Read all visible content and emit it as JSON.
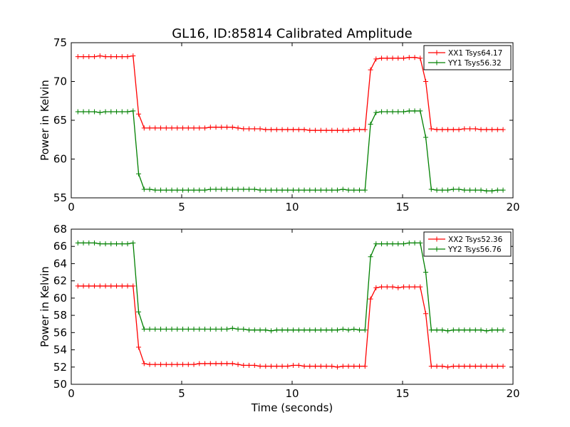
{
  "figure": {
    "title": "GL16, ID:85814 Calibrated Amplitude",
    "xlabel": "Time (seconds)"
  },
  "chart_data": [
    {
      "type": "line",
      "ylabel": "Power in Kelvin",
      "xlim": [
        0,
        20
      ],
      "ylim": [
        55,
        75
      ],
      "xticks": [
        0,
        5,
        10,
        15,
        20
      ],
      "yticks": [
        55,
        60,
        65,
        70,
        75
      ],
      "grid": false,
      "legend_position": "top-right",
      "x": [
        0.3,
        0.55,
        0.8,
        1.05,
        1.3,
        1.55,
        1.8,
        2.05,
        2.3,
        2.55,
        2.8,
        3.05,
        3.3,
        3.55,
        3.8,
        4.05,
        4.3,
        4.55,
        4.8,
        5.05,
        5.3,
        5.55,
        5.8,
        6.05,
        6.3,
        6.55,
        6.8,
        7.05,
        7.3,
        7.55,
        7.8,
        8.05,
        8.3,
        8.55,
        8.8,
        9.05,
        9.3,
        9.55,
        9.8,
        10.05,
        10.3,
        10.55,
        10.8,
        11.05,
        11.3,
        11.55,
        11.8,
        12.05,
        12.3,
        12.55,
        12.8,
        13.05,
        13.3,
        13.55,
        13.8,
        14.05,
        14.3,
        14.55,
        14.8,
        15.05,
        15.3,
        15.55,
        15.8,
        16.05,
        16.3,
        16.55,
        16.8,
        17.05,
        17.3,
        17.55,
        17.8,
        18.05,
        18.3,
        18.55,
        18.8,
        19.05,
        19.3,
        19.55
      ],
      "series": [
        {
          "name": "XX1 Tsys64.17",
          "color": "#ff0000",
          "values": [
            73.2,
            73.2,
            73.2,
            73.2,
            73.3,
            73.2,
            73.2,
            73.2,
            73.2,
            73.2,
            73.3,
            65.8,
            64.0,
            64.0,
            64.0,
            64.0,
            64.0,
            64.0,
            64.0,
            64.0,
            64.0,
            64.0,
            64.0,
            64.0,
            64.1,
            64.1,
            64.1,
            64.1,
            64.1,
            64.0,
            63.9,
            63.9,
            63.9,
            63.9,
            63.8,
            63.8,
            63.8,
            63.8,
            63.8,
            63.8,
            63.8,
            63.8,
            63.7,
            63.7,
            63.7,
            63.7,
            63.7,
            63.7,
            63.7,
            63.7,
            63.8,
            63.8,
            63.8,
            71.5,
            72.9,
            73.0,
            73.0,
            73.0,
            73.0,
            73.0,
            73.1,
            73.1,
            73.0,
            70.0,
            63.9,
            63.8,
            63.8,
            63.8,
            63.8,
            63.8,
            63.9,
            63.9,
            63.9,
            63.8,
            63.8,
            63.8,
            63.8,
            63.8
          ]
        },
        {
          "name": "YY1 Tsys56.32",
          "color": "#008000",
          "values": [
            66.1,
            66.1,
            66.1,
            66.1,
            66.0,
            66.1,
            66.1,
            66.1,
            66.1,
            66.1,
            66.2,
            58.1,
            56.1,
            56.1,
            56.0,
            56.0,
            56.0,
            56.0,
            56.0,
            56.0,
            56.0,
            56.0,
            56.0,
            56.0,
            56.1,
            56.1,
            56.1,
            56.1,
            56.1,
            56.1,
            56.1,
            56.1,
            56.1,
            56.0,
            56.0,
            56.0,
            56.0,
            56.0,
            56.0,
            56.0,
            56.0,
            56.0,
            56.0,
            56.0,
            56.0,
            56.0,
            56.0,
            56.0,
            56.1,
            56.0,
            56.0,
            56.0,
            56.0,
            64.5,
            66.0,
            66.1,
            66.1,
            66.1,
            66.1,
            66.1,
            66.2,
            66.2,
            66.2,
            62.8,
            56.1,
            56.0,
            56.0,
            56.0,
            56.1,
            56.1,
            56.0,
            56.0,
            56.0,
            56.0,
            55.9,
            55.9,
            56.0,
            56.0
          ]
        }
      ]
    },
    {
      "type": "line",
      "ylabel": "Power in Kelvin",
      "xlabel": "Time (seconds)",
      "xlim": [
        0,
        20
      ],
      "ylim": [
        50,
        68
      ],
      "xticks": [
        0,
        5,
        10,
        15,
        20
      ],
      "yticks": [
        50,
        52,
        54,
        56,
        58,
        60,
        62,
        64,
        66,
        68
      ],
      "grid": false,
      "legend_position": "top-right",
      "x": [
        0.3,
        0.55,
        0.8,
        1.05,
        1.3,
        1.55,
        1.8,
        2.05,
        2.3,
        2.55,
        2.8,
        3.05,
        3.3,
        3.55,
        3.8,
        4.05,
        4.3,
        4.55,
        4.8,
        5.05,
        5.3,
        5.55,
        5.8,
        6.05,
        6.3,
        6.55,
        6.8,
        7.05,
        7.3,
        7.55,
        7.8,
        8.05,
        8.3,
        8.55,
        8.8,
        9.05,
        9.3,
        9.55,
        9.8,
        10.05,
        10.3,
        10.55,
        10.8,
        11.05,
        11.3,
        11.55,
        11.8,
        12.05,
        12.3,
        12.55,
        12.8,
        13.05,
        13.3,
        13.55,
        13.8,
        14.05,
        14.3,
        14.55,
        14.8,
        15.05,
        15.3,
        15.55,
        15.8,
        16.05,
        16.3,
        16.55,
        16.8,
        17.05,
        17.3,
        17.55,
        17.8,
        18.05,
        18.3,
        18.55,
        18.8,
        19.05,
        19.3,
        19.55
      ],
      "series": [
        {
          "name": "XX2 Tsys52.36",
          "color": "#ff0000",
          "values": [
            61.4,
            61.4,
            61.4,
            61.4,
            61.4,
            61.4,
            61.4,
            61.4,
            61.4,
            61.4,
            61.4,
            54.3,
            52.4,
            52.3,
            52.3,
            52.3,
            52.3,
            52.3,
            52.3,
            52.3,
            52.3,
            52.3,
            52.4,
            52.4,
            52.4,
            52.4,
            52.4,
            52.4,
            52.4,
            52.3,
            52.2,
            52.2,
            52.2,
            52.1,
            52.1,
            52.1,
            52.1,
            52.1,
            52.1,
            52.2,
            52.2,
            52.1,
            52.1,
            52.1,
            52.1,
            52.1,
            52.1,
            52.0,
            52.1,
            52.1,
            52.1,
            52.1,
            52.1,
            59.9,
            61.2,
            61.3,
            61.3,
            61.3,
            61.2,
            61.3,
            61.3,
            61.3,
            61.3,
            58.2,
            52.1,
            52.1,
            52.1,
            52.0,
            52.1,
            52.1,
            52.1,
            52.1,
            52.1,
            52.1,
            52.1,
            52.1,
            52.1,
            52.1
          ]
        },
        {
          "name": "YY2 Tsys56.76",
          "color": "#008000",
          "values": [
            66.4,
            66.4,
            66.4,
            66.4,
            66.3,
            66.3,
            66.3,
            66.3,
            66.3,
            66.3,
            66.4,
            58.4,
            56.4,
            56.4,
            56.4,
            56.4,
            56.4,
            56.4,
            56.4,
            56.4,
            56.4,
            56.4,
            56.4,
            56.4,
            56.4,
            56.4,
            56.4,
            56.4,
            56.5,
            56.4,
            56.4,
            56.3,
            56.3,
            56.3,
            56.3,
            56.2,
            56.3,
            56.3,
            56.3,
            56.3,
            56.3,
            56.3,
            56.3,
            56.3,
            56.3,
            56.3,
            56.3,
            56.3,
            56.4,
            56.3,
            56.4,
            56.3,
            56.3,
            64.8,
            66.3,
            66.3,
            66.3,
            66.3,
            66.3,
            66.3,
            66.4,
            66.4,
            66.4,
            63.0,
            56.3,
            56.3,
            56.3,
            56.2,
            56.3,
            56.3,
            56.3,
            56.3,
            56.3,
            56.3,
            56.2,
            56.3,
            56.3,
            56.3
          ]
        }
      ]
    }
  ]
}
